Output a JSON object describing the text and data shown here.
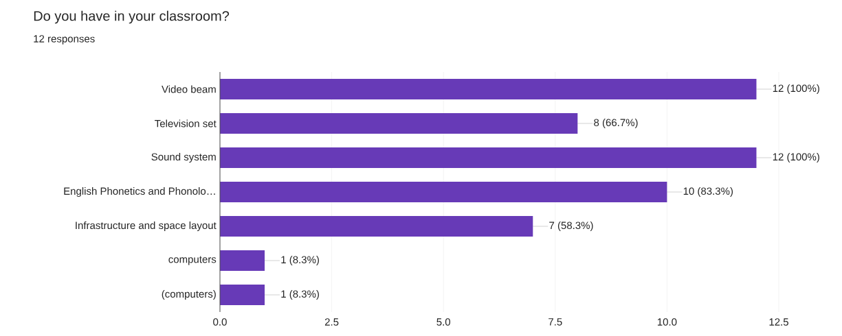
{
  "chart_data": {
    "type": "bar",
    "orientation": "horizontal",
    "title": "Do you have in your classroom?",
    "subtitle": "12 responses",
    "categories": [
      "Video beam",
      "Television set",
      "Sound system",
      "English Phonetics and Phonolo…",
      "Infrastructure and space layout",
      "computers",
      "(computers)"
    ],
    "values": [
      12,
      8,
      12,
      10,
      7,
      1,
      1
    ],
    "value_labels": [
      "12 (100%)",
      "8 (66.7%)",
      "12 (100%)",
      "10 (83.3%)",
      "7 (58.3%)",
      "1 (8.3%)",
      "1 (8.3%)"
    ],
    "color": "#673ab7",
    "xlim": [
      0,
      12.5
    ],
    "xticks": [
      {
        "value": 0,
        "label": "0.0"
      },
      {
        "value": 2.5,
        "label": "2.5"
      },
      {
        "value": 5,
        "label": "5.0"
      },
      {
        "value": 7.5,
        "label": "7.5"
      },
      {
        "value": 10,
        "label": "10.0"
      },
      {
        "value": 12.5,
        "label": "12.5"
      }
    ],
    "grid": "x"
  }
}
